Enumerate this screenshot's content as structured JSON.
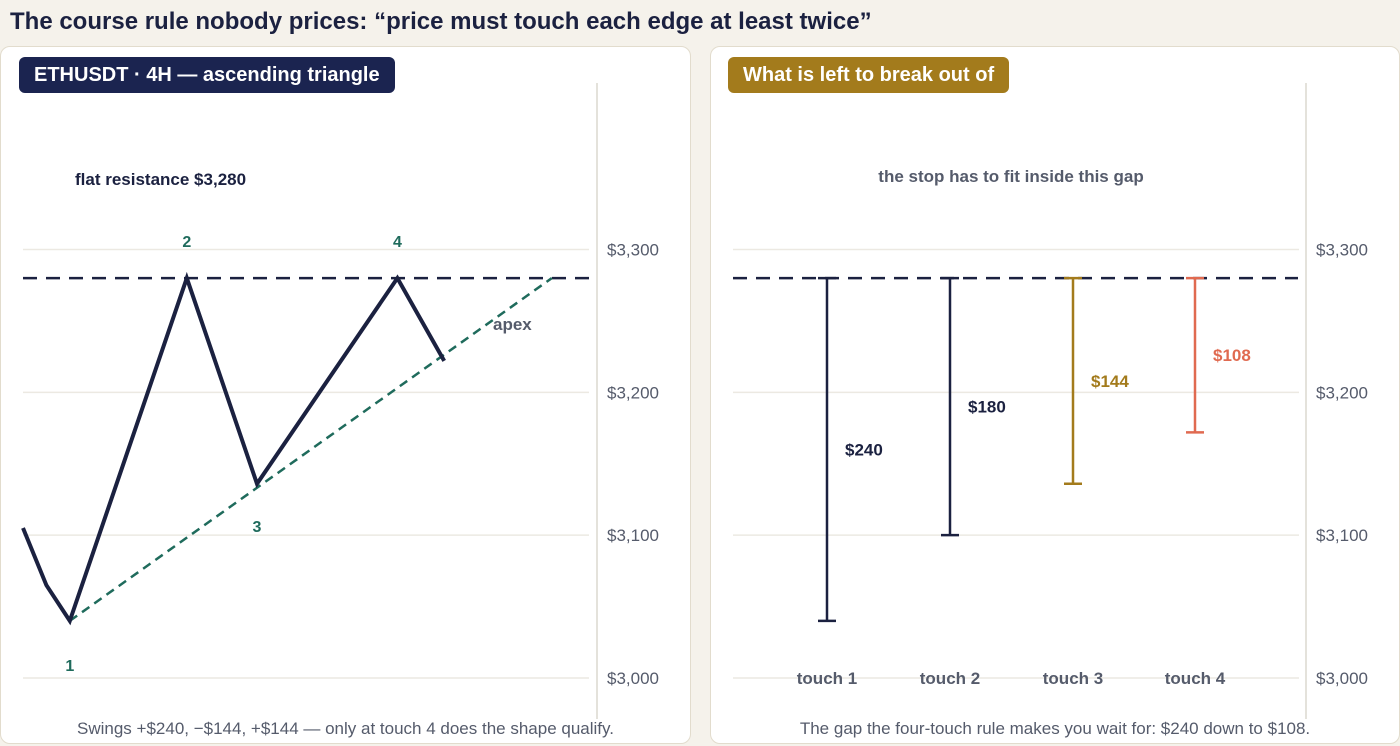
{
  "title": "The course rule nobody prices: “price must touch each edge at least twice”",
  "colors": {
    "navy": "#1b2140",
    "teal": "#1f6b5c",
    "gold": "#a37b1c",
    "coral": "#e06a50",
    "grid": "#ece9e2",
    "axis_text": "#555b6b"
  },
  "left_panel": {
    "badge": "ETHUSDT · 4H — ascending triangle",
    "resistance_label": "flat resistance $3,280",
    "apex_label": "apex",
    "caption": "Swings +$240, −$144, +$144 — only at touch 4 does the shape qualify."
  },
  "right_panel": {
    "badge": "What is left to break out of",
    "annotation": "the stop has to fit inside this gap",
    "caption": "The gap the four-touch rule makes you wait for: $240 down to $108."
  },
  "chart_data": [
    {
      "type": "line",
      "title": "ETHUSDT · 4H — ascending triangle",
      "ylim": [
        2985,
        3400
      ],
      "y_ticks": [
        3000,
        3100,
        3200,
        3300
      ],
      "y_tick_labels": [
        "$3,000",
        "$3,100",
        "$3,200",
        "$3,300"
      ],
      "grid": true,
      "resistance": 3280,
      "series": [
        {
          "style": "price",
          "x": [
            0,
            1,
            2,
            7,
            10,
            16,
            18
          ],
          "y": [
            3105,
            3065,
            3040,
            3280,
            3136,
            3280,
            3222
          ]
        }
      ],
      "support_line": {
        "x": [
          2,
          22.6
        ],
        "y": [
          3040,
          3280
        ]
      },
      "touches": [
        {
          "label": "1",
          "x": 2,
          "y": 3040
        },
        {
          "label": "2",
          "x": 7,
          "y": 3280
        },
        {
          "label": "3",
          "x": 10,
          "y": 3136
        },
        {
          "label": "4",
          "x": 16,
          "y": 3280
        }
      ]
    },
    {
      "type": "bar",
      "title": "What is left to break out of",
      "ylim": [
        2985,
        3400
      ],
      "y_ticks": [
        3000,
        3100,
        3200,
        3300
      ],
      "y_tick_labels": [
        "$3,000",
        "$3,100",
        "$3,200",
        "$3,300"
      ],
      "grid": true,
      "resistance": 3280,
      "categories": [
        "touch 1",
        "touch 2",
        "touch 3",
        "touch 4"
      ],
      "ranges": [
        {
          "low": 3040,
          "high": 3280,
          "label": "$240",
          "color": "#1b2140"
        },
        {
          "low": 3100,
          "high": 3280,
          "label": "$180",
          "color": "#1b2140"
        },
        {
          "low": 3136,
          "high": 3280,
          "label": "$144",
          "color": "#a37b1c"
        },
        {
          "low": 3172,
          "high": 3280,
          "label": "$108",
          "color": "#e06a50"
        }
      ]
    }
  ]
}
